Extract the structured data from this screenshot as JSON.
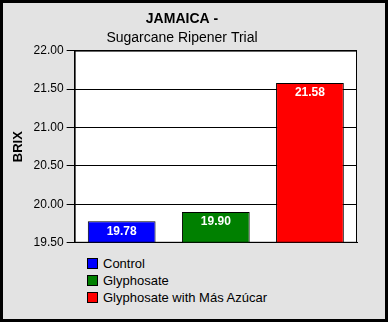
{
  "chart_data": {
    "type": "bar",
    "title": "JAMAICA -",
    "subtitle": "Sugarcane Ripener Trial",
    "categories": [
      "Control",
      "Glyphosate",
      "Glyphosate with Más Azúcar"
    ],
    "values": [
      19.78,
      19.9,
      21.58
    ],
    "value_labels": [
      "19.78",
      "19.90",
      "21.58"
    ],
    "colors": [
      "#0000ff",
      "#008000",
      "#ff0000"
    ],
    "ylabel": "BRIX",
    "ylim": [
      19.5,
      22
    ],
    "yticks": [
      {
        "value": 19.5,
        "label": "19.50"
      },
      {
        "value": 20,
        "label": "20.00"
      },
      {
        "value": 20.5,
        "label": "20.50"
      },
      {
        "value": 21,
        "label": "21.00"
      },
      {
        "value": 21.5,
        "label": "21.50"
      },
      {
        "value": 22,
        "label": "22.00"
      }
    ],
    "grid": true,
    "legend": "bottom-left",
    "data_labels": true,
    "tick_labels": "y"
  }
}
